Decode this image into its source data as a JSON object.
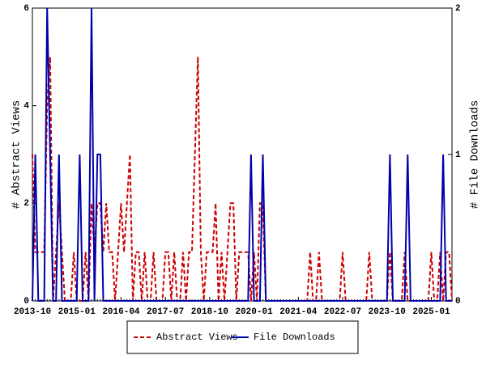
{
  "chart_data": {
    "type": "line",
    "x": [
      "2013-10",
      "2013-11",
      "2013-12",
      "2014-01",
      "2014-02",
      "2014-03",
      "2014-04",
      "2014-05",
      "2014-06",
      "2014-07",
      "2014-08",
      "2014-09",
      "2014-10",
      "2014-11",
      "2014-12",
      "2015-01",
      "2015-02",
      "2015-03",
      "2015-04",
      "2015-05",
      "2015-06",
      "2015-07",
      "2015-08",
      "2015-09",
      "2015-10",
      "2015-11",
      "2015-12",
      "2016-01",
      "2016-02",
      "2016-03",
      "2016-04",
      "2016-05",
      "2016-06",
      "2016-07",
      "2016-08",
      "2016-09",
      "2016-10",
      "2016-11",
      "2016-12",
      "2017-01",
      "2017-02",
      "2017-03",
      "2017-04",
      "2017-05",
      "2017-06",
      "2017-07",
      "2017-08",
      "2017-09",
      "2017-10",
      "2017-11",
      "2017-12",
      "2018-01",
      "2018-02",
      "2018-03",
      "2018-04",
      "2018-05",
      "2018-06",
      "2018-07",
      "2018-08",
      "2018-09",
      "2018-10",
      "2018-11",
      "2018-12",
      "2019-01",
      "2019-02",
      "2019-03",
      "2019-04",
      "2019-05",
      "2019-06",
      "2019-07",
      "2019-08",
      "2019-09",
      "2019-10",
      "2019-11",
      "2019-12",
      "2020-01",
      "2020-02",
      "2020-03",
      "2020-04",
      "2020-05",
      "2020-06",
      "2020-07",
      "2020-08",
      "2020-09",
      "2020-10",
      "2020-11",
      "2020-12",
      "2021-01",
      "2021-02",
      "2021-03",
      "2021-04",
      "2021-05",
      "2021-06",
      "2021-07",
      "2021-08",
      "2021-09",
      "2021-10",
      "2021-11",
      "2021-12",
      "2022-01",
      "2022-02",
      "2022-03",
      "2022-04",
      "2022-05",
      "2022-06",
      "2022-07",
      "2022-08",
      "2022-09",
      "2022-10",
      "2022-11",
      "2022-12",
      "2023-01",
      "2023-02",
      "2023-03",
      "2023-04",
      "2023-05",
      "2023-06",
      "2023-07",
      "2023-08",
      "2023-09",
      "2023-10",
      "2023-11",
      "2023-12",
      "2024-01",
      "2024-02",
      "2024-03",
      "2024-04",
      "2024-05",
      "2024-06",
      "2024-07",
      "2024-08",
      "2024-09",
      "2024-10",
      "2024-11",
      "2024-12",
      "2025-01",
      "2025-02",
      "2025-03",
      "2025-04",
      "2025-05",
      "2025-06",
      "2025-07",
      "2025-08"
    ],
    "series": [
      {
        "name": "Abstract Views",
        "color": "#cc0000",
        "dash": true,
        "axis": "y",
        "values": [
          3,
          1,
          1,
          1,
          1,
          4,
          5,
          0,
          1,
          2,
          1,
          0,
          0,
          0,
          1,
          0,
          0,
          0,
          1,
          0,
          2,
          1,
          2,
          2,
          1,
          2,
          1,
          1,
          0,
          1,
          2,
          1,
          2,
          3,
          0,
          1,
          1,
          0,
          1,
          0,
          0,
          1,
          0,
          0,
          0,
          1,
          1,
          0,
          1,
          0,
          0,
          1,
          0,
          1,
          1,
          3,
          5,
          1,
          0,
          1,
          1,
          1,
          2,
          0,
          1,
          0,
          1,
          2,
          2,
          0,
          1,
          1,
          1,
          1,
          0,
          1,
          0,
          2,
          2,
          0,
          0,
          0,
          0,
          0,
          0,
          0,
          0,
          0,
          0,
          0,
          0,
          0,
          0,
          0,
          1,
          0,
          0,
          1,
          0,
          0,
          0,
          0,
          0,
          0,
          0,
          1,
          0,
          0,
          0,
          0,
          0,
          0,
          0,
          0,
          1,
          0,
          0,
          0,
          0,
          0,
          0,
          1,
          0,
          0,
          0,
          0,
          1,
          0,
          0,
          0,
          0,
          0,
          0,
          0,
          0,
          1,
          0,
          0,
          1,
          0,
          1,
          1,
          0
        ]
      },
      {
        "name": "File Downloads",
        "color": "#0000aa",
        "dash": false,
        "axis": "y2",
        "values": [
          0,
          1,
          0,
          0,
          0,
          2,
          1,
          0,
          0,
          1,
          0,
          0,
          0,
          0,
          0,
          0,
          1,
          0,
          0,
          0,
          2,
          0,
          1,
          1,
          0,
          0,
          0,
          0,
          0,
          0,
          0,
          0,
          0,
          0,
          0,
          0,
          0,
          0,
          0,
          0,
          0,
          0,
          0,
          0,
          0,
          0,
          0,
          0,
          0,
          0,
          0,
          0,
          0,
          0,
          0,
          0,
          0,
          0,
          0,
          0,
          0,
          0,
          0,
          0,
          0,
          0,
          0,
          0,
          0,
          0,
          0,
          0,
          0,
          0,
          1,
          0,
          0,
          0,
          1,
          0,
          0,
          0,
          0,
          0,
          0,
          0,
          0,
          0,
          0,
          0,
          0,
          0,
          0,
          0,
          0,
          0,
          0,
          0,
          0,
          0,
          0,
          0,
          0,
          0,
          0,
          0,
          0,
          0,
          0,
          0,
          0,
          0,
          0,
          0,
          0,
          0,
          0,
          0,
          0,
          0,
          0,
          1,
          0,
          0,
          0,
          0,
          0,
          1,
          0,
          0,
          0,
          0,
          0,
          0,
          0,
          0,
          0,
          0,
          0,
          1,
          0,
          0,
          0
        ]
      }
    ],
    "xlim": [
      "2013-10",
      "2025-08"
    ],
    "xticks": [
      "2013-10",
      "2015-01",
      "2016-04",
      "2017-07",
      "2018-10",
      "2020-01",
      "2021-04",
      "2022-07",
      "2023-10",
      "2025-01"
    ],
    "ylim": [
      0,
      6
    ],
    "yticks": [
      0,
      2,
      4,
      6
    ],
    "y2lim": [
      0,
      2
    ],
    "y2ticks": [
      0,
      1,
      2
    ],
    "ylabel": "# Abstract Views",
    "y2label": "# File Downloads"
  }
}
